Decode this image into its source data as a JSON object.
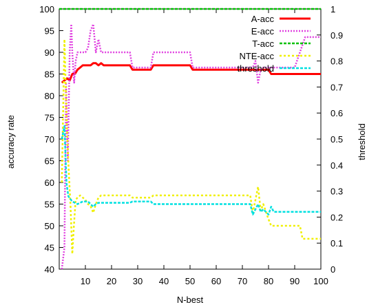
{
  "chart_data": {
    "type": "line",
    "xlabel": "N-best",
    "ylabel": "accuracy rate",
    "y2label": "threshold",
    "xlim": [
      0,
      100
    ],
    "ylim": [
      40,
      100
    ],
    "y2lim": [
      0,
      1
    ],
    "x_ticks": [
      10,
      20,
      30,
      40,
      50,
      60,
      70,
      80,
      90,
      100
    ],
    "y_ticks": [
      40,
      45,
      50,
      55,
      60,
      65,
      70,
      75,
      80,
      85,
      90,
      95,
      100
    ],
    "y2_ticks": [
      0,
      0.1,
      0.2,
      0.3,
      0.4,
      0.5,
      0.6,
      0.7,
      0.8,
      0.9,
      1
    ],
    "legend_position": "top-right",
    "grid": false,
    "series": [
      {
        "name": "A-acc",
        "axis": "left",
        "color": "#ff0000",
        "dash": "",
        "x": [
          1,
          2,
          3,
          4,
          5,
          6,
          7,
          8,
          9,
          10,
          11,
          12,
          13,
          14,
          15,
          16,
          17,
          20,
          27,
          28,
          35,
          36,
          50,
          51,
          78,
          79,
          80,
          81,
          100
        ],
        "y": [
          83,
          83.5,
          84,
          83.5,
          85,
          85,
          86,
          86.5,
          87,
          87,
          87,
          87,
          87.5,
          87.5,
          87,
          87.5,
          87,
          87,
          87,
          86,
          86,
          87,
          87,
          86,
          86,
          86,
          86,
          85,
          85
        ]
      },
      {
        "name": "E-acc",
        "axis": "left",
        "color": "#e040e0",
        "dash": "2,2",
        "x": [
          1,
          2,
          2.6,
          3.3,
          4,
          4.6,
          5,
          5.7,
          6.3,
          7,
          8,
          9,
          10,
          11,
          12,
          13,
          14,
          15,
          16,
          17,
          18,
          27,
          28,
          35,
          36,
          50,
          51,
          74,
          75,
          76,
          77,
          78,
          80,
          90,
          92,
          94,
          96,
          100
        ],
        "y": [
          40,
          45,
          83,
          65,
          90,
          96.5,
          90,
          83,
          88,
          90,
          90,
          90,
          90,
          91,
          95,
          96.5,
          90,
          93,
          90,
          90,
          90,
          90,
          86.5,
          86.5,
          90,
          90,
          86.5,
          86.5,
          88,
          83,
          86,
          86.5,
          86.5,
          86.5,
          90,
          93.5,
          93.5,
          93.5
        ]
      },
      {
        "name": "T-acc",
        "axis": "left",
        "color": "#00c000",
        "dash": "4,2",
        "x": [
          0,
          100
        ],
        "y": [
          100,
          100
        ]
      },
      {
        "name": "NTE-acc",
        "axis": "left",
        "color": "#f0f000",
        "dash": "3,3",
        "x": [
          1,
          2,
          2.8,
          3.6,
          4.3,
          5,
          5.6,
          6.3,
          7,
          8,
          9,
          10,
          11,
          12,
          13,
          14,
          15,
          16,
          20,
          27,
          28,
          35,
          36,
          50,
          51,
          73,
          74,
          75,
          76,
          77,
          78,
          80,
          81,
          82,
          92,
          93,
          100
        ],
        "y": [
          60,
          93,
          75,
          63,
          55,
          43.5,
          50,
          56,
          56.5,
          57,
          56.5,
          56,
          55,
          54.5,
          53,
          55,
          56.5,
          57,
          57,
          57,
          56.5,
          56.5,
          57,
          57,
          57,
          57,
          53,
          56,
          59,
          53.5,
          55,
          51.5,
          50,
          50,
          50,
          47,
          47
        ]
      },
      {
        "name": "threshold",
        "axis": "right",
        "color": "#00e0e0",
        "dash": "4,2",
        "x": [
          1,
          2,
          2.8,
          3.5,
          4.2,
          5,
          6,
          7,
          8,
          9,
          10,
          11,
          12,
          13,
          14,
          15,
          16,
          27,
          28,
          35,
          36,
          50,
          51,
          73,
          74,
          75,
          76,
          77,
          78,
          80,
          81,
          82,
          100
        ],
        "y": [
          0.5,
          0.55,
          0.33,
          0.28,
          0.27,
          0.26,
          0.255,
          0.25,
          0.255,
          0.26,
          0.26,
          0.26,
          0.25,
          0.24,
          0.25,
          0.255,
          0.255,
          0.255,
          0.26,
          0.26,
          0.25,
          0.25,
          0.25,
          0.25,
          0.21,
          0.23,
          0.25,
          0.22,
          0.23,
          0.21,
          0.24,
          0.22,
          0.22
        ]
      }
    ]
  }
}
